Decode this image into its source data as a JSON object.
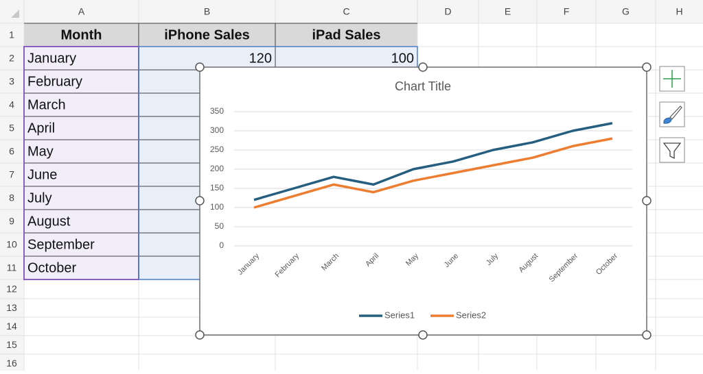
{
  "column_headers": [
    "A",
    "B",
    "C",
    "D",
    "E",
    "F",
    "G",
    "H"
  ],
  "row_numbers": [
    1,
    2,
    3,
    4,
    5,
    6,
    7,
    8,
    9,
    10,
    11,
    12,
    13,
    14,
    15,
    16
  ],
  "table": {
    "rows": [
      [
        "Month",
        "iPhone Sales",
        "iPad Sales"
      ],
      [
        "January",
        120,
        100
      ],
      [
        "February"
      ],
      [
        "March"
      ],
      [
        "April"
      ],
      [
        "May"
      ],
      [
        "June"
      ],
      [
        "July"
      ],
      [
        "August"
      ],
      [
        "September"
      ],
      [
        "October"
      ]
    ]
  },
  "chart_data": {
    "type": "line",
    "title": "Chart Title",
    "categories": [
      "January",
      "February",
      "March",
      "April",
      "May",
      "June",
      "July",
      "August",
      "September",
      "October"
    ],
    "series": [
      {
        "name": "Series1",
        "color": "#255e7e",
        "values": [
          120,
          150,
          180,
          160,
          200,
          220,
          250,
          270,
          300,
          320
        ]
      },
      {
        "name": "Series2",
        "color": "#ed7d31",
        "values": [
          100,
          130,
          160,
          140,
          170,
          190,
          210,
          230,
          260,
          280
        ]
      }
    ],
    "ylim": [
      0,
      350
    ],
    "yticks": [
      0,
      50,
      100,
      150,
      200,
      250,
      300,
      350
    ],
    "grid": true,
    "legend": "bottom"
  }
}
